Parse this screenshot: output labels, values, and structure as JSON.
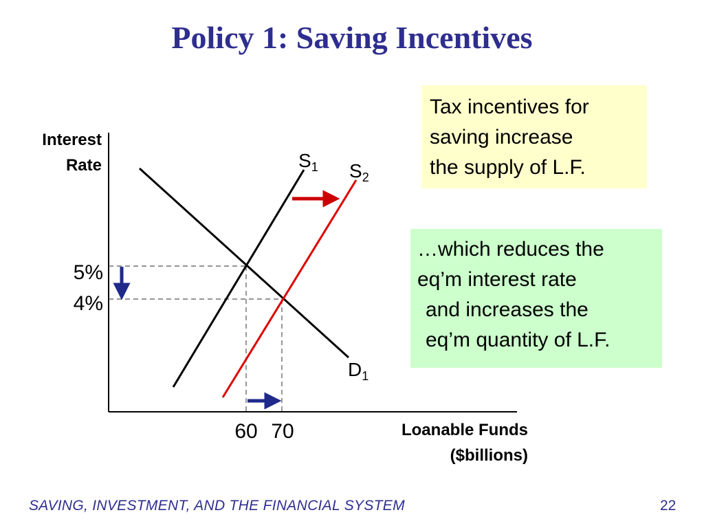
{
  "slide": {
    "title": "Policy 1:  Saving Incentives",
    "footer": "SAVING, INVESTMENT, AND THE FINANCIAL SYSTEM",
    "page_number": "22"
  },
  "notes": {
    "supply_note": [
      "Tax incentives for",
      "saving increase",
      "the supply of L.F."
    ],
    "effect_note": [
      "…which reduces the",
      "eq’m interest rate",
      "and increases the",
      "eq’m quantity of L.F."
    ]
  },
  "colors": {
    "title": "#2e2e8f",
    "supply_shifted": "#dd0000",
    "arrow_right": "#cc0000",
    "arrow_blue": "#1f2a8a",
    "note_yellow": "#ffffcc",
    "note_green": "#ccffcc"
  },
  "chart_data": {
    "type": "line",
    "ylabel": [
      "Interest",
      "Rate"
    ],
    "xlabel": [
      "Loanable Funds",
      "($billions)"
    ],
    "y_ticks": [
      {
        "value": 5,
        "label": "5%"
      },
      {
        "value": 4,
        "label": "4%"
      }
    ],
    "x_ticks": [
      {
        "value": 60,
        "label": "60"
      },
      {
        "value": 70,
        "label": "70"
      }
    ],
    "curve_labels": {
      "S1": {
        "main": "S",
        "sub": "1"
      },
      "S2": {
        "main": "S",
        "sub": "2"
      },
      "D1": {
        "main": "D",
        "sub": "1"
      }
    },
    "equilibria": [
      {
        "name": "initial",
        "x": 60,
        "y": 5
      },
      {
        "name": "new",
        "x": 70,
        "y": 4
      }
    ],
    "shift_arrows": [
      "supply shifts right",
      "rate falls from 5% to 4%",
      "quantity rises from 60 to 70"
    ],
    "grid": false
  }
}
